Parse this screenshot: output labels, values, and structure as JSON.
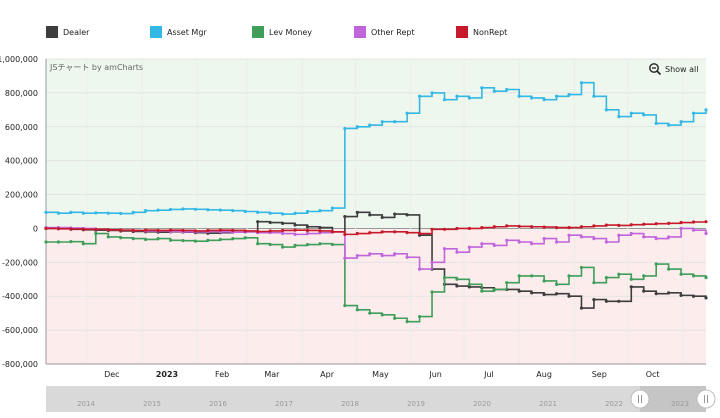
{
  "legend": {
    "items": [
      {
        "label": "Dealer",
        "color": "#3d3d3d"
      },
      {
        "label": "Asset Mgr",
        "color": "#33b8e6"
      },
      {
        "label": "Lev Money",
        "color": "#3e9e5a"
      },
      {
        "label": "Other Rept",
        "color": "#c165dd"
      },
      {
        "label": "NonRept",
        "color": "#c8192a"
      }
    ]
  },
  "credit": "JSチャート by amCharts",
  "show_all": "Show all",
  "scrollbar": {
    "years": [
      "2014",
      "2015",
      "2016",
      "2017",
      "2018",
      "2019",
      "2020",
      "2021",
      "2022",
      "2023"
    ]
  },
  "chart_data": {
    "type": "line",
    "step": true,
    "ylim": [
      -800000,
      1000000
    ],
    "y_ticks": [
      "1,000,000",
      "800,000",
      "600,000",
      "400,000",
      "200,000",
      "0",
      "-200,000",
      "-400,000",
      "-600,000",
      "-800,000"
    ],
    "x_ticks": [
      "Dec",
      "2023",
      "Feb",
      "Mar",
      "Apr",
      "May",
      "Jun",
      "Jul",
      "Aug",
      "Sep",
      "Oct"
    ],
    "x_range": [
      "2022-11-08",
      "2023-11-14"
    ],
    "positive_fill": "#eef7ee",
    "negative_fill": "#fcecec",
    "series": [
      {
        "name": "Dealer",
        "color": "#3d3d3d",
        "x": [
          "2022-11-08",
          "2022-11-15",
          "2022-11-22",
          "2022-11-29",
          "2022-12-06",
          "2022-12-13",
          "2022-12-20",
          "2022-12-27",
          "2023-01-03",
          "2023-01-10",
          "2023-01-17",
          "2023-01-24",
          "2023-01-31",
          "2023-02-07",
          "2023-02-14",
          "2023-02-21",
          "2023-02-28",
          "2023-03-07",
          "2023-03-14",
          "2023-03-21",
          "2023-03-28",
          "2023-04-04",
          "2023-04-11",
          "2023-04-18",
          "2023-04-25",
          "2023-05-02",
          "2023-05-09",
          "2023-05-16",
          "2023-05-23",
          "2023-05-30",
          "2023-06-06",
          "2023-06-13",
          "2023-06-20",
          "2023-06-27",
          "2023-07-04",
          "2023-07-11",
          "2023-07-18",
          "2023-07-25",
          "2023-08-01",
          "2023-08-08",
          "2023-08-15",
          "2023-08-22",
          "2023-08-29",
          "2023-09-05",
          "2023-09-12",
          "2023-09-19",
          "2023-09-26",
          "2023-10-03",
          "2023-10-10",
          "2023-10-17",
          "2023-10-24",
          "2023-10-31",
          "2023-11-07",
          "2023-11-14"
        ],
        "values": [
          0,
          0,
          -5000,
          -8000,
          -10000,
          -12000,
          -15000,
          -18000,
          -20000,
          -22000,
          -20000,
          -22000,
          -25000,
          -28000,
          -25000,
          -22000,
          -20000,
          40000,
          35000,
          30000,
          20000,
          10000,
          5000,
          -20000,
          70000,
          95000,
          80000,
          65000,
          85000,
          80000,
          -40000,
          -240000,
          -330000,
          -340000,
          -345000,
          -350000,
          -360000,
          -360000,
          -370000,
          -380000,
          -390000,
          -385000,
          -400000,
          -470000,
          -420000,
          -430000,
          -430000,
          -345000,
          -370000,
          -385000,
          -380000,
          -395000,
          -400000,
          -410000
        ]
      },
      {
        "name": "Asset Mgr",
        "color": "#33b8e6",
        "x": [
          "2022-11-08",
          "2022-11-15",
          "2022-11-22",
          "2022-11-29",
          "2022-12-06",
          "2022-12-13",
          "2022-12-20",
          "2022-12-27",
          "2023-01-03",
          "2023-01-10",
          "2023-01-17",
          "2023-01-24",
          "2023-01-31",
          "2023-02-07",
          "2023-02-14",
          "2023-02-21",
          "2023-02-28",
          "2023-03-07",
          "2023-03-14",
          "2023-03-21",
          "2023-03-28",
          "2023-04-04",
          "2023-04-11",
          "2023-04-18",
          "2023-04-25",
          "2023-05-02",
          "2023-05-09",
          "2023-05-16",
          "2023-05-23",
          "2023-05-30",
          "2023-06-06",
          "2023-06-13",
          "2023-06-20",
          "2023-06-27",
          "2023-07-04",
          "2023-07-11",
          "2023-07-18",
          "2023-07-25",
          "2023-08-01",
          "2023-08-08",
          "2023-08-15",
          "2023-08-22",
          "2023-08-29",
          "2023-09-05",
          "2023-09-12",
          "2023-09-19",
          "2023-09-26",
          "2023-10-03",
          "2023-10-10",
          "2023-10-17",
          "2023-10-24",
          "2023-10-31",
          "2023-11-07",
          "2023-11-14"
        ],
        "values": [
          95000,
          90000,
          95000,
          90000,
          92000,
          90000,
          88000,
          95000,
          105000,
          108000,
          112000,
          115000,
          113000,
          110000,
          108000,
          105000,
          100000,
          95000,
          90000,
          85000,
          90000,
          100000,
          105000,
          120000,
          590000,
          600000,
          610000,
          630000,
          630000,
          680000,
          780000,
          800000,
          760000,
          780000,
          770000,
          830000,
          810000,
          820000,
          780000,
          770000,
          760000,
          780000,
          790000,
          860000,
          780000,
          700000,
          660000,
          680000,
          670000,
          620000,
          610000,
          630000,
          680000,
          700000
        ]
      },
      {
        "name": "Lev Money",
        "color": "#3e9e5a",
        "x": [
          "2022-11-08",
          "2022-11-15",
          "2022-11-22",
          "2022-11-29",
          "2022-12-06",
          "2022-12-13",
          "2022-12-20",
          "2022-12-27",
          "2023-01-03",
          "2023-01-10",
          "2023-01-17",
          "2023-01-24",
          "2023-01-31",
          "2023-02-07",
          "2023-02-14",
          "2023-02-21",
          "2023-02-28",
          "2023-03-07",
          "2023-03-14",
          "2023-03-21",
          "2023-03-28",
          "2023-04-04",
          "2023-04-11",
          "2023-04-18",
          "2023-04-25",
          "2023-05-02",
          "2023-05-09",
          "2023-05-16",
          "2023-05-23",
          "2023-05-30",
          "2023-06-06",
          "2023-06-13",
          "2023-06-20",
          "2023-06-27",
          "2023-07-04",
          "2023-07-11",
          "2023-07-18",
          "2023-07-25",
          "2023-08-01",
          "2023-08-08",
          "2023-08-15",
          "2023-08-22",
          "2023-08-29",
          "2023-09-05",
          "2023-09-12",
          "2023-09-19",
          "2023-09-26",
          "2023-10-03",
          "2023-10-10",
          "2023-10-17",
          "2023-10-24",
          "2023-10-31",
          "2023-11-07",
          "2023-11-14"
        ],
        "values": [
          -80000,
          -80000,
          -78000,
          -90000,
          -30000,
          -50000,
          -55000,
          -60000,
          -65000,
          -60000,
          -70000,
          -72000,
          -75000,
          -70000,
          -65000,
          -60000,
          -55000,
          -90000,
          -95000,
          -110000,
          -100000,
          -95000,
          -90000,
          -95000,
          -455000,
          -480000,
          -500000,
          -510000,
          -530000,
          -550000,
          -520000,
          -375000,
          -290000,
          -300000,
          -330000,
          -370000,
          -360000,
          -320000,
          -280000,
          -280000,
          -310000,
          -330000,
          -280000,
          -230000,
          -320000,
          -290000,
          -270000,
          -300000,
          -280000,
          -210000,
          -240000,
          -270000,
          -280000,
          -290000
        ]
      },
      {
        "name": "Other Rept",
        "color": "#c165dd",
        "x": [
          "2022-11-08",
          "2022-11-15",
          "2022-11-22",
          "2022-11-29",
          "2022-12-06",
          "2022-12-13",
          "2022-12-20",
          "2022-12-27",
          "2023-01-03",
          "2023-01-10",
          "2023-01-17",
          "2023-01-24",
          "2023-01-31",
          "2023-02-07",
          "2023-02-14",
          "2023-02-21",
          "2023-02-28",
          "2023-03-07",
          "2023-03-14",
          "2023-03-21",
          "2023-03-28",
          "2023-04-04",
          "2023-04-11",
          "2023-04-18",
          "2023-04-25",
          "2023-05-02",
          "2023-05-09",
          "2023-05-16",
          "2023-05-23",
          "2023-05-30",
          "2023-06-06",
          "2023-06-13",
          "2023-06-20",
          "2023-06-27",
          "2023-07-04",
          "2023-07-11",
          "2023-07-18",
          "2023-07-25",
          "2023-08-01",
          "2023-08-08",
          "2023-08-15",
          "2023-08-22",
          "2023-08-29",
          "2023-09-05",
          "2023-09-12",
          "2023-09-19",
          "2023-09-26",
          "2023-10-03",
          "2023-10-10",
          "2023-10-17",
          "2023-10-24",
          "2023-10-31",
          "2023-11-07",
          "2023-11-14"
        ],
        "values": [
          5000,
          5000,
          2000,
          0,
          -5000,
          -8000,
          -10000,
          -12000,
          -15000,
          -15000,
          -18000,
          -20000,
          -20000,
          -18000,
          -20000,
          -22000,
          -20000,
          -25000,
          -25000,
          -30000,
          -35000,
          -30000,
          -25000,
          -20000,
          -175000,
          -160000,
          -150000,
          -160000,
          -150000,
          -170000,
          -240000,
          -200000,
          -120000,
          -140000,
          -110000,
          -90000,
          -100000,
          -70000,
          -80000,
          -90000,
          -60000,
          -80000,
          -40000,
          -50000,
          -60000,
          -80000,
          -40000,
          -30000,
          -50000,
          -60000,
          -50000,
          0,
          -10000,
          -30000
        ]
      },
      {
        "name": "NonRept",
        "color": "#c8192a",
        "x": [
          "2022-11-08",
          "2022-11-15",
          "2022-11-22",
          "2022-11-29",
          "2022-12-06",
          "2022-12-13",
          "2022-12-20",
          "2022-12-27",
          "2023-01-03",
          "2023-01-10",
          "2023-01-17",
          "2023-01-24",
          "2023-01-31",
          "2023-02-07",
          "2023-02-14",
          "2023-02-21",
          "2023-02-28",
          "2023-03-07",
          "2023-03-14",
          "2023-03-21",
          "2023-03-28",
          "2023-04-04",
          "2023-04-11",
          "2023-04-18",
          "2023-04-25",
          "2023-05-02",
          "2023-05-09",
          "2023-05-16",
          "2023-05-23",
          "2023-05-30",
          "2023-06-06",
          "2023-06-13",
          "2023-06-20",
          "2023-06-27",
          "2023-07-04",
          "2023-07-11",
          "2023-07-18",
          "2023-07-25",
          "2023-08-01",
          "2023-08-08",
          "2023-08-15",
          "2023-08-22",
          "2023-08-29",
          "2023-09-05",
          "2023-09-12",
          "2023-09-19",
          "2023-09-26",
          "2023-10-03",
          "2023-10-10",
          "2023-10-17",
          "2023-10-24",
          "2023-10-31",
          "2023-11-07",
          "2023-11-14"
        ],
        "values": [
          0,
          -2000,
          -3000,
          -5000,
          -5000,
          -8000,
          -10000,
          -12000,
          -10000,
          -12000,
          -10000,
          -12000,
          -15000,
          -12000,
          -10000,
          -12000,
          -15000,
          -18000,
          -15000,
          -12000,
          -10000,
          -12000,
          -15000,
          -20000,
          -35000,
          -30000,
          -25000,
          -20000,
          -20000,
          -25000,
          -30000,
          -5000,
          -5000,
          0,
          0,
          5000,
          10000,
          15000,
          12000,
          10000,
          8000,
          5000,
          5000,
          10000,
          15000,
          20000,
          18000,
          22000,
          25000,
          28000,
          30000,
          35000,
          38000,
          40000
        ]
      }
    ]
  }
}
